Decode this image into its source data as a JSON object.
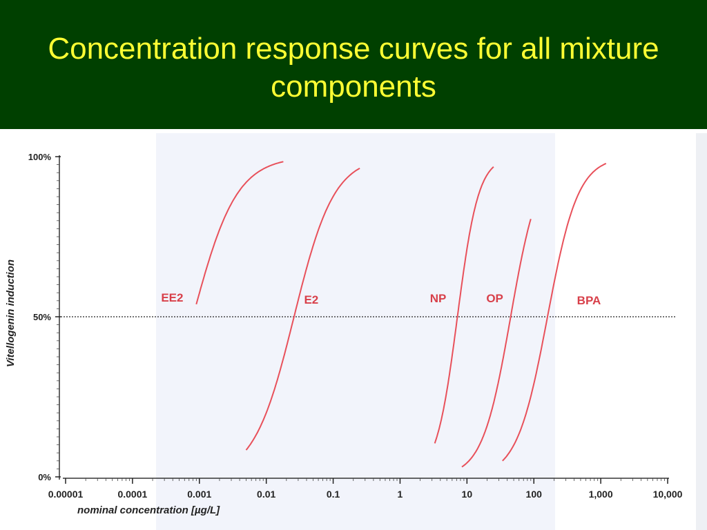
{
  "slide": {
    "title": "Concentration response curves for all mixture components"
  },
  "colors": {
    "header_bg": "#004000",
    "title_text": "#ffff33",
    "curve": "#e8505a",
    "label": "#d8404a",
    "panel_bg": "#f2f4fb"
  },
  "chart_data": {
    "type": "line",
    "xlabel": "nominal concentration [µg/L]",
    "ylabel": "Vitellogenin induction",
    "x_scale": "log",
    "xlim": [
      1e-05,
      10000
    ],
    "ylim": [
      0,
      100
    ],
    "x_ticks": [
      {
        "value": 1e-05,
        "label": "0.00001"
      },
      {
        "value": 0.0001,
        "label": "0.0001"
      },
      {
        "value": 0.001,
        "label": "0.001"
      },
      {
        "value": 0.01,
        "label": "0.01"
      },
      {
        "value": 0.1,
        "label": "0.1"
      },
      {
        "value": 1,
        "label": "1"
      },
      {
        "value": 10,
        "label": "10"
      },
      {
        "value": 100,
        "label": "100"
      },
      {
        "value": 1000,
        "label": "1,000"
      },
      {
        "value": 10000,
        "label": "10,000"
      }
    ],
    "y_ticks": [
      {
        "value": 0,
        "label": "0%"
      },
      {
        "value": 50,
        "label": "50%"
      },
      {
        "value": 100,
        "label": "100%"
      }
    ],
    "reference_line": {
      "y": 50,
      "style": "dotted"
    },
    "grid": false,
    "series": [
      {
        "name": "EE2",
        "x_start": 0.0009,
        "x_end": 0.018,
        "ec50": 0.0008,
        "slope": 1.33
      },
      {
        "name": "E2",
        "x_start": 0.005,
        "x_end": 0.25,
        "ec50": 0.026,
        "slope": 1.45
      },
      {
        "name": "NP",
        "x_start": 3.3,
        "x_end": 25,
        "ec50": 7.2,
        "slope": 2.75
      },
      {
        "name": "OP",
        "x_start": 8.4,
        "x_end": 90,
        "ec50": 45,
        "slope": 2.05
      },
      {
        "name": "BPA",
        "x_start": 34,
        "x_end": 1200,
        "ec50": 160,
        "slope": 1.9
      }
    ]
  }
}
